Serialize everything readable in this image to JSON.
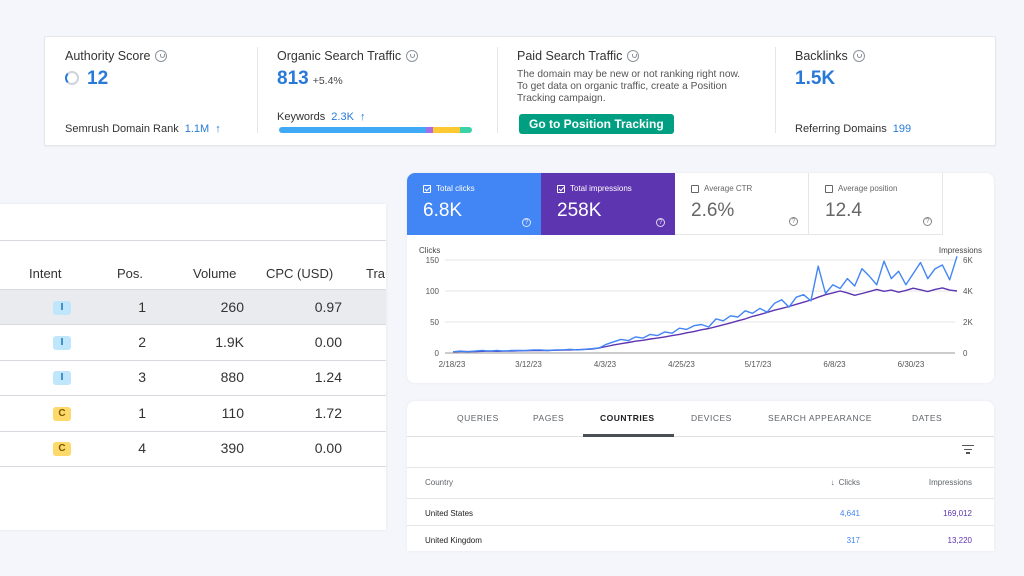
{
  "semrush": {
    "authority": {
      "title": "Authority Score",
      "value": "12",
      "sub_label": "Semrush Domain Rank",
      "sub_value": "1.1M",
      "sub_arrow": "↑"
    },
    "organic": {
      "title": "Organic Search Traffic",
      "value": "813",
      "change": "+5.4%",
      "sub_label": "Keywords",
      "sub_value": "2.3K",
      "sub_arrow": "↑"
    },
    "paid": {
      "title": "Paid Search Traffic",
      "description": "The domain may be new or not ranking right now. To get data on organic traffic, create a Position Tracking campaign.",
      "button": "Go to Position Tracking"
    },
    "backlinks": {
      "title": "Backlinks",
      "value": "1.5K",
      "sub_label": "Referring Domains",
      "sub_value": "199"
    },
    "keyword_bar_colors": [
      "#3fa9f5",
      "#3fa9f5",
      "#3fa9f5",
      "#a66de8",
      "#fdc932",
      "#3cd2a8"
    ]
  },
  "keyword_table": {
    "headers": [
      "Intent",
      "Pos.",
      "Volume",
      "CPC (USD)",
      "Tra"
    ],
    "rows": [
      {
        "intent": "I",
        "pos": "1",
        "volume": "260",
        "cpc": "0.97"
      },
      {
        "intent": "I",
        "pos": "2",
        "volume": "1.9K",
        "cpc": "0.00"
      },
      {
        "intent": "I",
        "pos": "3",
        "volume": "880",
        "cpc": "1.24"
      },
      {
        "intent": "C",
        "pos": "1",
        "volume": "110",
        "cpc": "1.72"
      },
      {
        "intent": "C",
        "pos": "4",
        "volume": "390",
        "cpc": "0.00"
      }
    ]
  },
  "gsc": {
    "metrics": [
      {
        "label": "Total clicks",
        "value": "6.8K",
        "checked": true,
        "style": "blue"
      },
      {
        "label": "Total impressions",
        "value": "258K",
        "checked": true,
        "style": "purple"
      },
      {
        "label": "Average CTR",
        "value": "2.6%",
        "checked": false,
        "style": "plain"
      },
      {
        "label": "Average position",
        "value": "12.4",
        "checked": false,
        "style": "plain"
      }
    ],
    "tabs": [
      "QUERIES",
      "PAGES",
      "COUNTRIES",
      "DEVICES",
      "SEARCH APPEARANCE",
      "DATES"
    ],
    "active_tab": "COUNTRIES",
    "table_headers": {
      "country": "Country",
      "clicks": "Clicks",
      "impressions": "Impressions",
      "sort_arrow": "↓"
    },
    "rows": [
      {
        "country": "United States",
        "clicks": "4,641",
        "impressions": "169,012"
      },
      {
        "country": "United Kingdom",
        "clicks": "317",
        "impressions": "13,220"
      }
    ],
    "colors": {
      "clicks": "#4285f4",
      "impressions": "#5e35b1"
    }
  },
  "chart_data": {
    "type": "line",
    "y_left_label": "Clicks",
    "y_right_label": "Impressions",
    "y_left_ticks": [
      "150",
      "100",
      "50",
      "0"
    ],
    "y_right_ticks": [
      "6K",
      "4K",
      "2K",
      "0"
    ],
    "x_ticks": [
      "2/18/23",
      "3/12/23",
      "4/3/23",
      "4/25/23",
      "5/17/23",
      "6/8/23",
      "6/30/23"
    ],
    "ylim_left": [
      0,
      150
    ],
    "ylim_right": [
      0,
      6000
    ],
    "series": [
      {
        "name": "Clicks",
        "axis": "left",
        "values": [
          2,
          3,
          2,
          3,
          4,
          3,
          4,
          3,
          4,
          4,
          4,
          5,
          5,
          4,
          5,
          5,
          6,
          5,
          6,
          7,
          8,
          14,
          18,
          22,
          20,
          26,
          24,
          30,
          28,
          34,
          32,
          40,
          38,
          44,
          46,
          42,
          55,
          52,
          60,
          58,
          68,
          64,
          72,
          66,
          80,
          86,
          74,
          90,
          94,
          84,
          140,
          96,
          110,
          104,
          120,
          108,
          136,
          124,
          110,
          148,
          120,
          132,
          110,
          128,
          146,
          120,
          136,
          142,
          118,
          156
        ]
      },
      {
        "name": "Impressions",
        "axis": "right",
        "values": [
          80,
          100,
          90,
          100,
          110,
          120,
          110,
          120,
          130,
          140,
          150,
          160,
          170,
          160,
          180,
          190,
          200,
          210,
          230,
          260,
          320,
          420,
          520,
          600,
          680,
          760,
          820,
          900,
          960,
          1040,
          1120,
          1200,
          1300,
          1380,
          1500,
          1580,
          1700,
          1820,
          1940,
          2080,
          2200,
          2360,
          2480,
          2620,
          2760,
          2880,
          3000,
          3140,
          3280,
          3420,
          3600,
          3760,
          3880,
          4000,
          3880,
          3720,
          3840,
          3960,
          4100,
          3980,
          4060,
          3920,
          4040,
          4180,
          4080,
          3960,
          4100,
          4200,
          4060,
          4000
        ]
      }
    ]
  }
}
